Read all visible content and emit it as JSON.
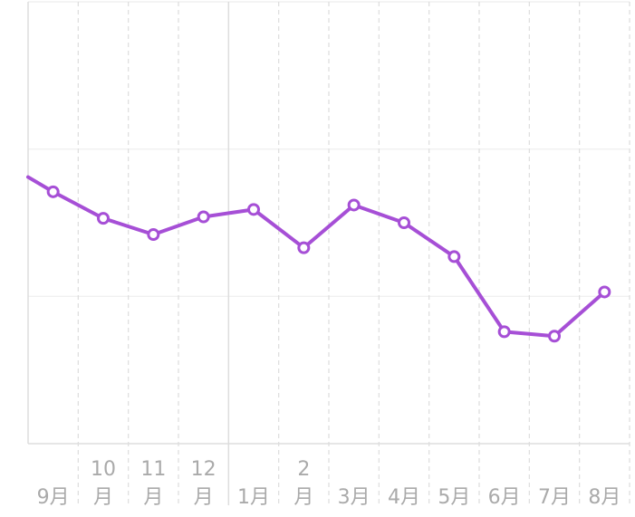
{
  "chart_data": {
    "type": "line",
    "title": "",
    "xlabel": "",
    "ylabel": "",
    "categories": [
      "9月",
      "10月",
      "11月",
      "12月",
      "1月",
      "2月",
      "3月",
      "4月",
      "5月",
      "6月",
      "7月",
      "8月"
    ],
    "x_tick_labels": [
      {
        "lines": [
          "9月"
        ]
      },
      {
        "lines": [
          "10",
          "月"
        ]
      },
      {
        "lines": [
          "11",
          "月"
        ]
      },
      {
        "lines": [
          "12",
          "月"
        ]
      },
      {
        "lines": [
          "1月"
        ]
      },
      {
        "lines": [
          "2",
          "月"
        ]
      },
      {
        "lines": [
          "3月"
        ]
      },
      {
        "lines": [
          "4月"
        ]
      },
      {
        "lines": [
          "5月"
        ]
      },
      {
        "lines": [
          "6月"
        ]
      },
      {
        "lines": [
          "7月"
        ]
      },
      {
        "lines": [
          "8月"
        ]
      }
    ],
    "series": [
      {
        "color": "#a64fd6",
        "points": [
          {
            "x": 8.5,
            "y": 1.81
          },
          {
            "x": 9,
            "y": 1.71
          },
          {
            "x": 10,
            "y": 1.53
          },
          {
            "x": 11,
            "y": 1.42
          },
          {
            "x": 12,
            "y": 1.54
          },
          {
            "x": 13,
            "y": 1.59
          },
          {
            "x": 14,
            "y": 1.33
          },
          {
            "x": 15,
            "y": 1.62
          },
          {
            "x": 16,
            "y": 1.5
          },
          {
            "x": 17,
            "y": 1.27
          },
          {
            "x": 18,
            "y": 0.76
          },
          {
            "x": 19,
            "y": 0.73
          },
          {
            "x": 20,
            "y": 1.03
          }
        ]
      }
    ],
    "xlim": [
      8.5,
      20.5
    ],
    "ylim": [
      0,
      3
    ],
    "horizontal_gridlines": [
      1,
      2,
      3
    ],
    "grid": true,
    "colors": {
      "line": "#a64fd6",
      "grid": "#eeeeee",
      "axis": "#dddddd",
      "tick_text": "#aaaaaa"
    }
  }
}
